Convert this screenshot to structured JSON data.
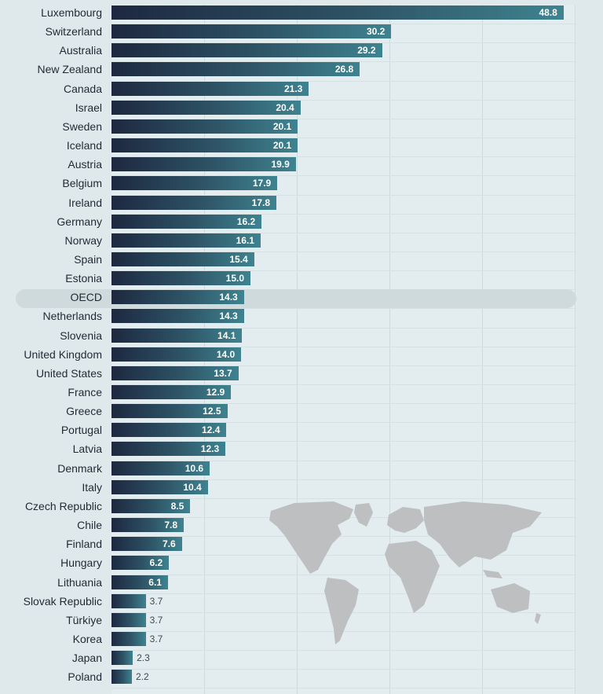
{
  "chart_data": {
    "type": "bar",
    "orientation": "horizontal",
    "title": "",
    "xlabel": "",
    "ylabel": "",
    "xlim": [
      0,
      50
    ],
    "highlight": "OECD",
    "categories": [
      "Luxembourg",
      "Switzerland",
      "Australia",
      "New Zealand",
      "Canada",
      "Israel",
      "Sweden",
      "Iceland",
      "Austria",
      "Belgium",
      "Ireland",
      "Germany",
      "Norway",
      "Spain",
      "Estonia",
      "OECD",
      "Netherlands",
      "Slovenia",
      "United Kingdom",
      "United States",
      "France",
      "Greece",
      "Portugal",
      "Latvia",
      "Denmark",
      "Italy",
      "Czech Republic",
      "Chile",
      "Finland",
      "Hungary",
      "Lithuania",
      "Slovak Republic",
      "Türkiye",
      "Korea",
      "Japan",
      "Poland"
    ],
    "values": [
      48.8,
      30.2,
      29.2,
      26.8,
      21.3,
      20.4,
      20.1,
      20.1,
      19.9,
      17.9,
      17.8,
      16.2,
      16.1,
      15.4,
      15.0,
      14.3,
      14.3,
      14.1,
      14.0,
      13.7,
      12.9,
      12.5,
      12.4,
      12.3,
      10.6,
      10.4,
      8.5,
      7.8,
      7.6,
      6.2,
      6.1,
      3.7,
      3.7,
      3.7,
      2.3,
      2.2
    ],
    "labels": [
      "48.8",
      "30.2",
      "29.2",
      "26.8",
      "21.3",
      "20.4",
      "20.1",
      "20.1",
      "19.9",
      "17.9",
      "17.8",
      "16.2",
      "16.1",
      "15.4",
      "15.0",
      "14.3",
      "14.3",
      "14.1",
      "14.0",
      "13.7",
      "12.9",
      "12.5",
      "12.4",
      "12.3",
      "10.6",
      "10.4",
      "8.5",
      "7.8",
      "7.6",
      "6.2",
      "6.1",
      "3.7",
      "3.7",
      "3.7",
      "2.3",
      "2.2"
    ],
    "colors": {
      "bar_start": "#1d2840",
      "bar_end": "#3f8390",
      "grid": "#cfdadd",
      "map": "#bdbfc1"
    }
  }
}
